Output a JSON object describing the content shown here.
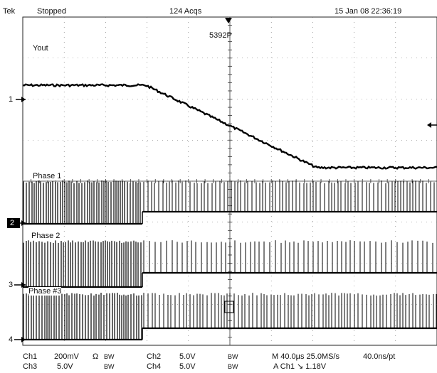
{
  "status_bar": {
    "brand": "Tek",
    "state": "Stopped",
    "acquisitions": "124 Acqs",
    "datetime": "15 Jan 08 22:36:19"
  },
  "trigger_point_label": "5392P",
  "traces": {
    "yout": {
      "label": "Yout",
      "channel_marker": "1"
    },
    "phase1": {
      "label": "Phase 1",
      "channel_marker": "2"
    },
    "phase2": {
      "label": "Phase 2",
      "channel_marker": "3"
    },
    "phase3": {
      "label": "Phase #3",
      "channel_marker": "4"
    }
  },
  "readout": {
    "row1": {
      "ch1": "Ch1",
      "ch1_scale": "200mV",
      "ch1_coupling": "Ω",
      "ch1_bw": "BW",
      "ch2": "Ch2",
      "ch2_scale": "5.0V",
      "ch2_bw": "BW",
      "timebase": "M 40.0µs 25.0MS/s",
      "resolution": "40.0ns/pt"
    },
    "row2": {
      "ch3": "Ch3",
      "ch3_scale": "5.0V",
      "ch3_bw": "BW",
      "ch4": "Ch4",
      "ch4_scale": "5.0V",
      "ch4_bw": "BW",
      "trigger": "A  Ch1  ↘  1.18V"
    }
  },
  "icons": [
    "trigger-position-icon",
    "trigger-level-arrow-icon",
    "channel-ground-marker-icon"
  ],
  "colors": {
    "background": "#ffffff",
    "trace": "#000000",
    "grid": "#555555"
  }
}
